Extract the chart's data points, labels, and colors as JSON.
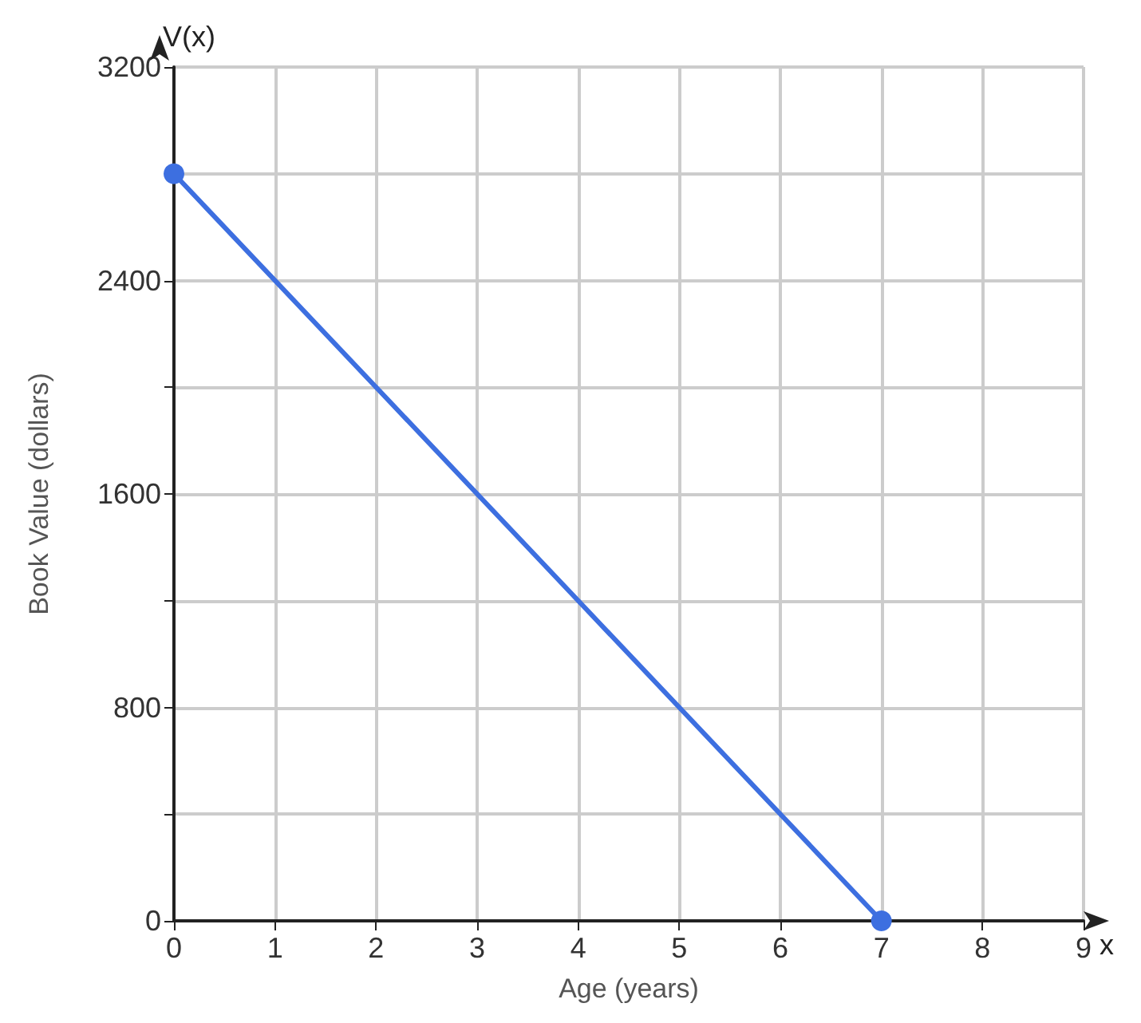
{
  "chart_data": {
    "type": "line",
    "xlabel": "Age (years)",
    "ylabel": "Book Value (dollars)",
    "x": [
      0,
      7
    ],
    "series": [
      {
        "color": "#3d6fe0",
        "values": [
          2800,
          0
        ]
      }
    ],
    "xlim": [
      0,
      9
    ],
    "xticks": [
      0,
      1,
      2,
      3,
      4,
      5,
      6,
      7,
      8,
      9
    ],
    "ylim": [
      0,
      3200
    ],
    "yticks": [
      0,
      {
        "value": 400,
        "label": null
      },
      800,
      {
        "value": 1200,
        "label": null
      },
      1600,
      {
        "value": 2000,
        "label": null
      },
      2400,
      {
        "value": 2800,
        "label": null
      },
      3200
    ],
    "grid": true,
    "marker": "circle",
    "line_style": "solid",
    "annotations": [
      "V(x)",
      "x"
    ]
  }
}
